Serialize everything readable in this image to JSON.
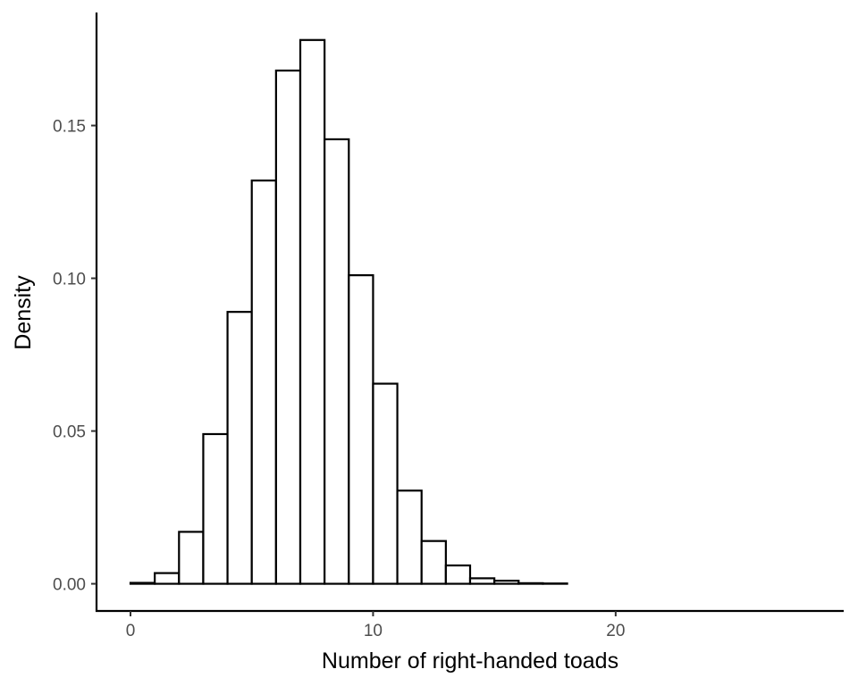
{
  "chart_data": {
    "type": "bar",
    "subtype": "histogram",
    "xlabel": "Number of right-handed toads",
    "ylabel": "Density",
    "bin_width": 1,
    "bins": [
      {
        "start": 0,
        "end": 1,
        "density": 0.0003
      },
      {
        "start": 1,
        "end": 2,
        "density": 0.0035
      },
      {
        "start": 2,
        "end": 3,
        "density": 0.017
      },
      {
        "start": 3,
        "end": 4,
        "density": 0.049
      },
      {
        "start": 4,
        "end": 5,
        "density": 0.089
      },
      {
        "start": 5,
        "end": 6,
        "density": 0.132
      },
      {
        "start": 6,
        "end": 7,
        "density": 0.168
      },
      {
        "start": 7,
        "end": 8,
        "density": 0.178
      },
      {
        "start": 8,
        "end": 9,
        "density": 0.1455
      },
      {
        "start": 9,
        "end": 10,
        "density": 0.101
      },
      {
        "start": 10,
        "end": 11,
        "density": 0.0655
      },
      {
        "start": 11,
        "end": 12,
        "density": 0.0305
      },
      {
        "start": 12,
        "end": 13,
        "density": 0.014
      },
      {
        "start": 13,
        "end": 14,
        "density": 0.006
      },
      {
        "start": 14,
        "end": 15,
        "density": 0.0018
      },
      {
        "start": 15,
        "end": 16,
        "density": 0.001
      },
      {
        "start": 16,
        "end": 17,
        "density": 0.0002
      },
      {
        "start": 17,
        "end": 18,
        "density": 0.0001
      },
      {
        "start": 18,
        "end": 19,
        "density": 0.0
      },
      {
        "start": 19,
        "end": 20,
        "density": 0.0
      },
      {
        "start": 20,
        "end": 21,
        "density": 0.0
      },
      {
        "start": 21,
        "end": 22,
        "density": 0.0
      },
      {
        "start": 22,
        "end": 23,
        "density": 0.0
      },
      {
        "start": 23,
        "end": 24,
        "density": 0.0
      },
      {
        "start": 24,
        "end": 25,
        "density": 0.0
      },
      {
        "start": 25,
        "end": 26,
        "density": 0.0
      },
      {
        "start": 26,
        "end": 27,
        "density": 0.0
      },
      {
        "start": 27,
        "end": 28,
        "density": 0.0
      }
    ],
    "xlim": [
      -1.4,
      29.4
    ],
    "ylim": [
      -0.0089,
      0.187
    ],
    "x_ticks": [
      0,
      10,
      20
    ],
    "x_tick_labels": [
      "0",
      "10",
      "20"
    ],
    "y_ticks": [
      0,
      0.05,
      0.1,
      0.15
    ],
    "y_tick_labels": [
      "0.00",
      "0.05",
      "0.10",
      "0.15"
    ],
    "grid": false,
    "legend": "none",
    "colors": {
      "bar_fill": "#ffffff",
      "bar_outline": "#000000",
      "axis": "#000000",
      "tick_text": "#4d4d4d"
    }
  }
}
